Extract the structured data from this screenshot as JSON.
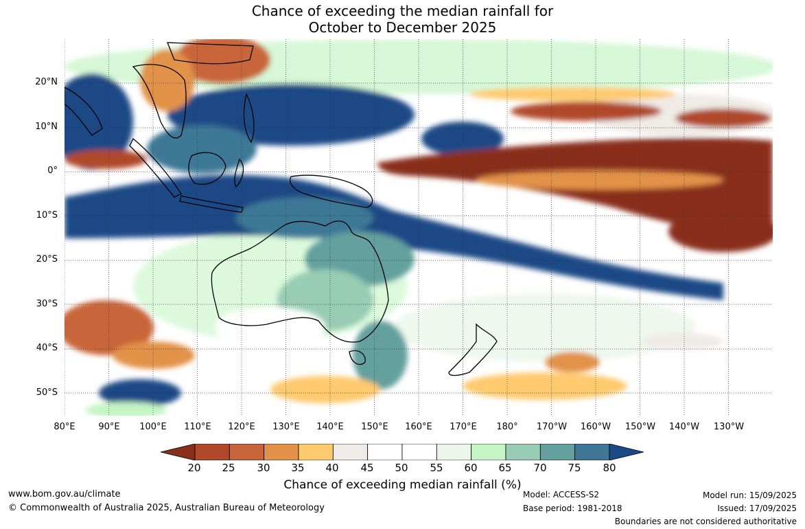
{
  "title": {
    "line1": "Chance of exceeding the median rainfall for",
    "line2": "October to December 2025"
  },
  "map": {
    "lat_labels": [
      "20°N",
      "10°N",
      "0°",
      "10°S",
      "20°S",
      "30°S",
      "40°S",
      "50°S"
    ],
    "lon_labels": [
      "80°E",
      "90°E",
      "100°E",
      "110°E",
      "120°E",
      "130°E",
      "140°E",
      "150°E",
      "160°E",
      "170°E",
      "180°",
      "170°W",
      "160°W",
      "150°W",
      "140°W",
      "130°W"
    ]
  },
  "legend": {
    "ticks": [
      "20",
      "25",
      "30",
      "35",
      "40",
      "45",
      "50",
      "55",
      "60",
      "65",
      "70",
      "75",
      "80"
    ],
    "colors": [
      "#8a2f1c",
      "#b0482a",
      "#c9653a",
      "#e2924a",
      "#ffc96e",
      "#efebe6",
      "#ffffff",
      "#ffffff",
      "#eaf6ea",
      "#c4f5c4",
      "#98ccb4",
      "#64a09e",
      "#3e7896",
      "#1a4a86"
    ],
    "label": "Chance of exceeding median rainfall (%)"
  },
  "footer": {
    "website": "www.bom.gov.au/climate",
    "copyright": "© Commonwealth of Australia 2025, Australian Bureau of Meteorology",
    "model": "Model: ACCESS-S2",
    "base_period": "Base period: 1981-2018",
    "model_run": "Model run: 15/09/2025",
    "issued": "Issued: 17/09/2025",
    "disclaimer": "Boundaries are not considered authoritative"
  }
}
